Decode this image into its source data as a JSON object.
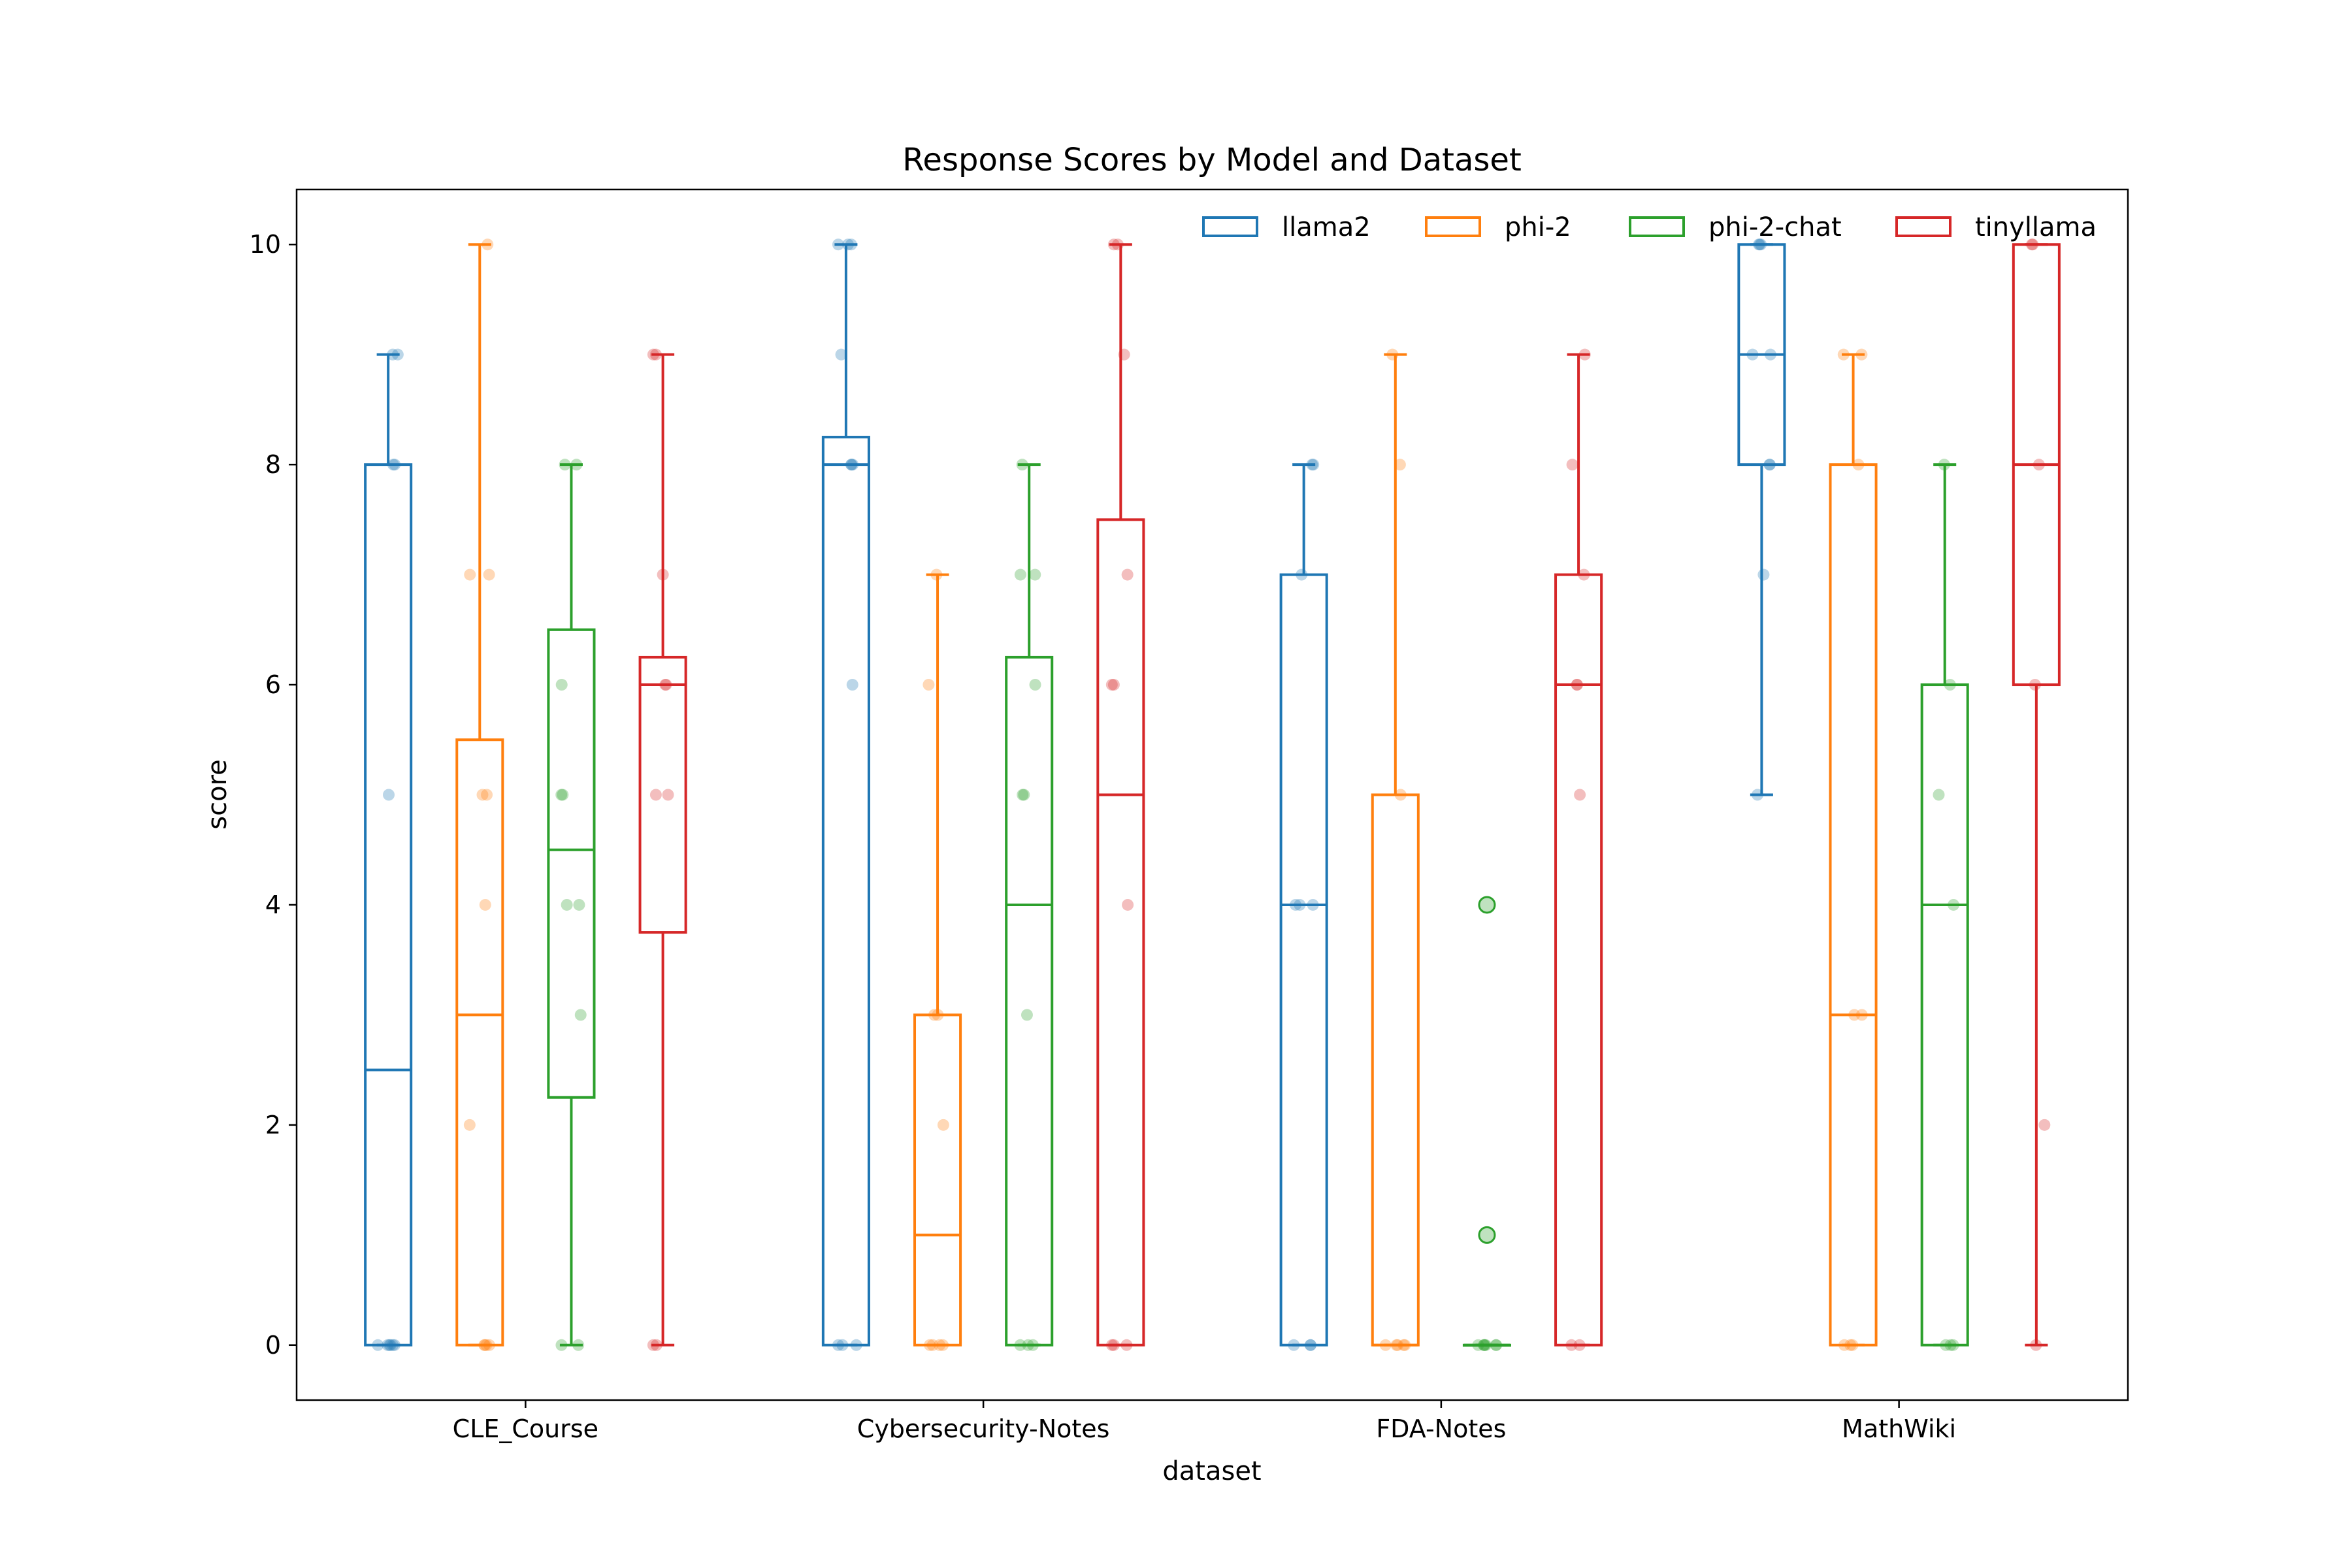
{
  "chart_data": {
    "type": "box",
    "title": "Response Scores by Model and Dataset",
    "xlabel": "dataset",
    "ylabel": "score",
    "ylim": [
      -0.5,
      10.5
    ],
    "yticks": [
      0,
      2,
      4,
      6,
      8,
      10
    ],
    "categories": [
      "CLE_Course",
      "Cybersecurity-Notes",
      "FDA-Notes",
      "MathWiki"
    ],
    "legend_position": "top-right",
    "grid": false,
    "series": [
      {
        "name": "llama2",
        "color": "#1f77b4",
        "boxes": [
          {
            "whislo": 0,
            "q1": 0,
            "med": 2.5,
            "q3": 8,
            "whishi": 9,
            "fliers": [],
            "points": [
              0,
              0,
              0,
              0,
              0,
              0,
              5,
              8,
              8,
              9,
              9
            ]
          },
          {
            "whislo": 0,
            "q1": 0,
            "med": 8,
            "q3": 8.25,
            "whishi": 10,
            "fliers": [],
            "points": [
              0,
              0,
              0,
              6,
              8,
              8,
              8,
              9,
              10,
              10,
              10
            ]
          },
          {
            "whislo": 0,
            "q1": 0,
            "med": 4,
            "q3": 7,
            "whishi": 8,
            "fliers": [],
            "points": [
              0,
              0,
              0,
              4,
              4,
              4,
              7,
              8,
              8
            ]
          },
          {
            "whislo": 5,
            "q1": 8,
            "med": 9,
            "q3": 10,
            "whishi": 10,
            "fliers": [],
            "points": [
              5,
              7,
              8,
              8,
              9,
              9,
              10,
              10,
              10
            ]
          }
        ]
      },
      {
        "name": "phi-2",
        "color": "#ff7f0e",
        "boxes": [
          {
            "whislo": 0,
            "q1": 0,
            "med": 3,
            "q3": 5.5,
            "whishi": 10,
            "fliers": [],
            "points": [
              0,
              0,
              0,
              0,
              2,
              4,
              5,
              5,
              7,
              7,
              10
            ]
          },
          {
            "whislo": 0,
            "q1": 0,
            "med": 1,
            "q3": 3,
            "whishi": 7,
            "fliers": [],
            "points": [
              0,
              0,
              0,
              0,
              2,
              3,
              3,
              6,
              7
            ]
          },
          {
            "whislo": 0,
            "q1": 0,
            "med": 0,
            "q3": 5,
            "whishi": 9,
            "fliers": [],
            "points": [
              0,
              0,
              0,
              0,
              0,
              5,
              8,
              9
            ]
          },
          {
            "whislo": 0,
            "q1": 0,
            "med": 3,
            "q3": 8,
            "whishi": 9,
            "fliers": [],
            "points": [
              0,
              0,
              0,
              3,
              3,
              8,
              9,
              9
            ]
          }
        ]
      },
      {
        "name": "phi-2-chat",
        "color": "#2ca02c",
        "boxes": [
          {
            "whislo": 0,
            "q1": 2.25,
            "med": 4.5,
            "q3": 6.5,
            "whishi": 8,
            "fliers": [],
            "points": [
              0,
              0,
              3,
              4,
              4,
              5,
              5,
              6,
              8,
              8
            ]
          },
          {
            "whislo": 0,
            "q1": 0,
            "med": 4,
            "q3": 6.25,
            "whishi": 8,
            "fliers": [],
            "points": [
              0,
              0,
              0,
              3,
              5,
              5,
              6,
              7,
              7,
              8
            ]
          },
          {
            "whislo": 0,
            "q1": 0,
            "med": 0,
            "q3": 0,
            "whishi": 0,
            "fliers": [
              4,
              1
            ],
            "points": [
              0,
              0,
              0,
              0,
              0,
              0,
              0
            ]
          },
          {
            "whislo": 0,
            "q1": 0,
            "med": 4,
            "q3": 6,
            "whishi": 8,
            "fliers": [],
            "points": [
              0,
              0,
              0,
              4,
              5,
              6,
              8
            ]
          }
        ]
      },
      {
        "name": "tinyllama",
        "color": "#d62728",
        "boxes": [
          {
            "whislo": 0,
            "q1": 3.75,
            "med": 6,
            "q3": 6.25,
            "whishi": 9,
            "fliers": [],
            "points": [
              0,
              0,
              5,
              5,
              6,
              6,
              7,
              9,
              9
            ]
          },
          {
            "whislo": 0,
            "q1": 0,
            "med": 5,
            "q3": 7.5,
            "whishi": 10,
            "fliers": [],
            "points": [
              0,
              0,
              0,
              4,
              6,
              6,
              7,
              9,
              10,
              10
            ]
          },
          {
            "whislo": 0,
            "q1": 0,
            "med": 6,
            "q3": 7,
            "whishi": 9,
            "fliers": [],
            "points": [
              0,
              0,
              5,
              6,
              6,
              7,
              8,
              9
            ]
          },
          {
            "whislo": 0,
            "q1": 6,
            "med": 8,
            "q3": 10,
            "whishi": 10,
            "fliers": [],
            "points": [
              0,
              2,
              6,
              8,
              10,
              10
            ]
          }
        ]
      }
    ]
  }
}
